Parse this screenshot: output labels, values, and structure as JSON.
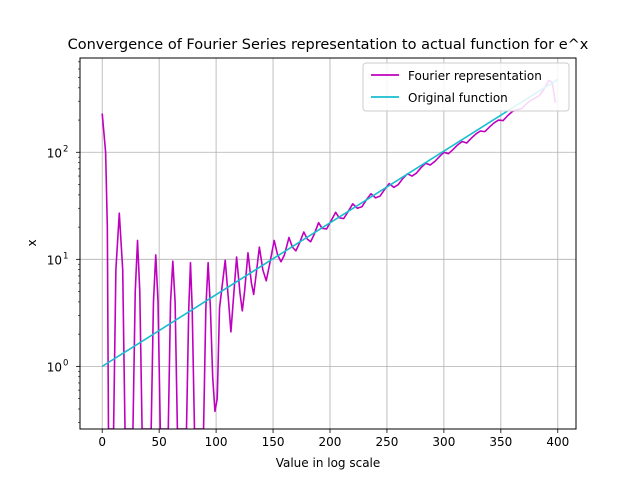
{
  "chart_data": {
    "type": "line",
    "title": "Convergence of Fourier Series representation to actual function for e^x",
    "xlabel": "Value in log scale",
    "ylabel": "x",
    "yscale": "log",
    "xlim": [
      -19.5,
      416
    ],
    "ylim": [
      0.26,
      760
    ],
    "x_ticks": [
      0,
      50,
      100,
      150,
      200,
      250,
      300,
      350,
      400
    ],
    "x_tick_labels": [
      "0",
      "50",
      "100",
      "150",
      "200",
      "250",
      "300",
      "350",
      "400"
    ],
    "y_ticks": [
      1,
      10,
      100
    ],
    "y_tick_labels": [
      "10^0",
      "10^1",
      "10^2"
    ],
    "grid": true,
    "legend": {
      "position": "top-right"
    },
    "series": [
      {
        "name": "Fourier representation",
        "color": "#bf00bf",
        "points": [
          [
            0,
            230
          ],
          [
            3,
            100
          ],
          [
            4.5,
            20
          ],
          [
            5.5,
            0.26
          ],
          [
            10,
            0.26
          ],
          [
            12,
            8
          ],
          [
            15,
            27
          ],
          [
            18,
            8
          ],
          [
            20,
            0.26
          ],
          [
            27,
            0.26
          ],
          [
            29,
            5
          ],
          [
            31,
            15
          ],
          [
            33,
            5
          ],
          [
            35,
            0.26
          ],
          [
            43,
            0.26
          ],
          [
            45,
            4
          ],
          [
            47,
            11
          ],
          [
            49,
            4
          ],
          [
            51,
            0.26
          ],
          [
            58,
            0.26
          ],
          [
            60,
            4
          ],
          [
            62,
            9.6
          ],
          [
            64,
            4
          ],
          [
            66,
            0.26
          ],
          [
            74,
            0.26
          ],
          [
            76,
            3.5
          ],
          [
            77.5,
            9.3
          ],
          [
            79,
            3.5
          ],
          [
            81,
            0.26
          ],
          [
            89,
            0.26
          ],
          [
            91,
            3.5
          ],
          [
            93,
            9.3
          ],
          [
            95,
            3.5
          ],
          [
            97,
            0.8
          ],
          [
            99,
            0.38
          ],
          [
            101,
            0.5
          ],
          [
            103,
            3.5
          ],
          [
            108,
            9.8
          ],
          [
            111,
            4
          ],
          [
            113,
            2.1
          ],
          [
            115,
            4
          ],
          [
            118,
            10.5
          ],
          [
            121,
            4.8
          ],
          [
            123,
            3.3
          ],
          [
            125,
            5
          ],
          [
            128,
            11.5
          ],
          [
            131,
            6
          ],
          [
            133,
            4.7
          ],
          [
            135,
            7
          ],
          [
            138,
            13
          ],
          [
            141,
            8
          ],
          [
            144,
            6.3
          ],
          [
            147,
            9
          ],
          [
            151,
            15
          ],
          [
            154,
            11
          ],
          [
            157,
            9.5
          ],
          [
            160,
            11
          ],
          [
            164,
            16
          ],
          [
            167,
            13
          ],
          [
            170,
            12
          ],
          [
            173,
            14
          ],
          [
            177,
            18
          ],
          [
            180,
            15.5
          ],
          [
            183,
            14.6
          ],
          [
            186,
            17
          ],
          [
            190,
            22
          ],
          [
            193,
            19.5
          ],
          [
            197,
            19.2
          ],
          [
            201,
            23
          ],
          [
            205,
            27.5
          ],
          [
            208,
            24.5
          ],
          [
            212,
            24
          ],
          [
            216,
            28
          ],
          [
            220,
            33
          ],
          [
            224,
            30
          ],
          [
            228,
            31
          ],
          [
            232,
            36
          ],
          [
            236,
            41
          ],
          [
            240,
            37.5
          ],
          [
            244,
            39
          ],
          [
            248,
            45
          ],
          [
            252,
            51
          ],
          [
            256,
            47
          ],
          [
            260,
            50
          ],
          [
            264,
            57
          ],
          [
            268,
            63
          ],
          [
            272,
            60
          ],
          [
            276,
            64
          ],
          [
            280,
            72
          ],
          [
            284,
            79
          ],
          [
            288,
            76
          ],
          [
            292,
            82
          ],
          [
            296,
            91
          ],
          [
            300,
            100
          ],
          [
            304,
            97
          ],
          [
            308,
            106
          ],
          [
            312,
            117
          ],
          [
            316,
            126
          ],
          [
            320,
            122
          ],
          [
            324,
            135
          ],
          [
            328,
            148
          ],
          [
            332,
            158
          ],
          [
            336,
            156
          ],
          [
            340,
            172
          ],
          [
            344,
            188
          ],
          [
            348,
            200
          ],
          [
            352,
            198
          ],
          [
            356,
            220
          ],
          [
            360,
            240
          ],
          [
            364,
            250
          ],
          [
            368,
            255
          ],
          [
            372,
            280
          ],
          [
            376,
            305
          ],
          [
            380,
            320
          ],
          [
            384,
            340
          ],
          [
            388,
            390
          ],
          [
            392,
            470
          ],
          [
            395,
            450
          ],
          [
            398,
            290
          ]
        ]
      },
      {
        "name": "Original function",
        "color": "#17becf",
        "points": [
          [
            0,
            1.0
          ],
          [
            400,
            480
          ]
        ]
      }
    ]
  }
}
